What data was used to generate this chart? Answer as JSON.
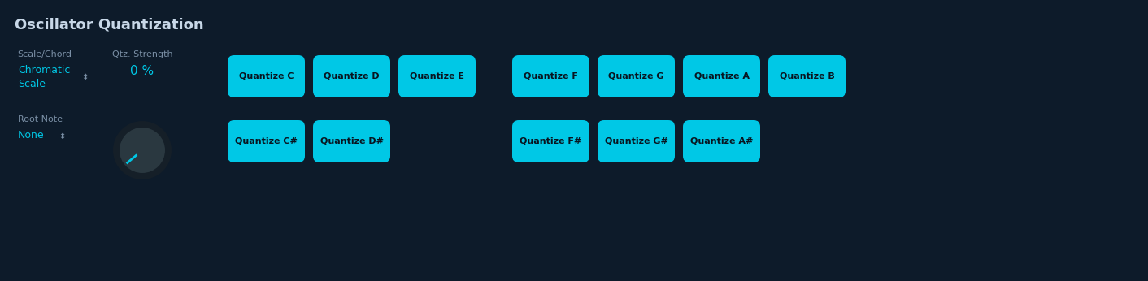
{
  "title": "Oscillator Quantization",
  "bg_color": "#0d1b2a",
  "title_color": "#c8d8e8",
  "label_color": "#7a8fa5",
  "cyan_color": "#00c8e6",
  "btn_color": "#00c8e6",
  "btn_text_color": "#091520",
  "knob_bg": "#2a3840",
  "knob_ring": "#151f28",
  "scale_chord_label": "Scale/Chord",
  "scale_chord_value": "Chromatic\nScale",
  "qtz_strength_label": "Qtz. Strength",
  "qtz_strength_value": "0 %",
  "root_note_label": "Root Note",
  "root_note_value": "None",
  "row1_labels": [
    "Quantize C",
    "Quantize D",
    "Quantize E",
    "Quantize F",
    "Quantize G",
    "Quantize A",
    "Quantize B"
  ],
  "row2_labels": [
    "Quantize C#",
    "Quantize D#",
    "Quantize F#",
    "Quantize G#",
    "Quantize A#"
  ],
  "fig_w": 14.12,
  "fig_h": 3.46,
  "dpi": 100
}
